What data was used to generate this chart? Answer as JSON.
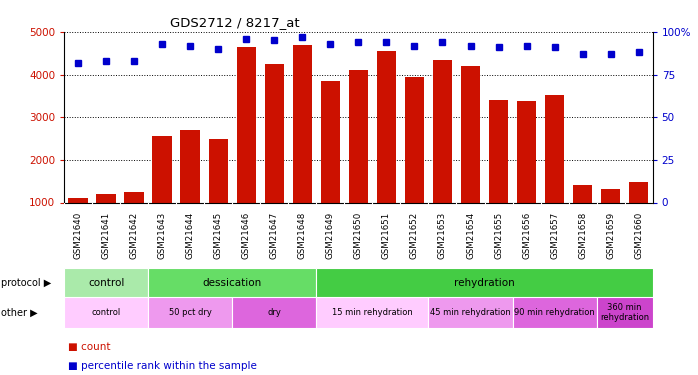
{
  "title": "GDS2712 / 8217_at",
  "samples": [
    "GSM21640",
    "GSM21641",
    "GSM21642",
    "GSM21643",
    "GSM21644",
    "GSM21645",
    "GSM21646",
    "GSM21647",
    "GSM21648",
    "GSM21649",
    "GSM21650",
    "GSM21651",
    "GSM21652",
    "GSM21653",
    "GSM21654",
    "GSM21655",
    "GSM21656",
    "GSM21657",
    "GSM21658",
    "GSM21659",
    "GSM21660"
  ],
  "counts": [
    1100,
    1200,
    1250,
    2550,
    2700,
    2500,
    4650,
    4250,
    4700,
    3850,
    4100,
    4550,
    3950,
    4350,
    4200,
    3400,
    3370,
    3530,
    1420,
    1310,
    1490
  ],
  "percentile_ranks": [
    82,
    83,
    83,
    93,
    92,
    90,
    96,
    95,
    97,
    93,
    94,
    94,
    92,
    94,
    92,
    91,
    92,
    91,
    87,
    87,
    88
  ],
  "bar_color": "#cc1100",
  "dot_color": "#0000cc",
  "ylim_left": [
    1000,
    5000
  ],
  "ylim_right": [
    0,
    100
  ],
  "yticks_left": [
    1000,
    2000,
    3000,
    4000,
    5000
  ],
  "yticks_right": [
    0,
    25,
    50,
    75,
    100
  ],
  "protocol_groups": [
    {
      "label": "control",
      "start": 0,
      "end": 3,
      "color": "#aaeaaa"
    },
    {
      "label": "dessication",
      "start": 3,
      "end": 9,
      "color": "#66dd66"
    },
    {
      "label": "rehydration",
      "start": 9,
      "end": 21,
      "color": "#44cc44"
    }
  ],
  "other_groups": [
    {
      "label": "control",
      "start": 0,
      "end": 3,
      "color": "#ffccff"
    },
    {
      "label": "50 pct dry",
      "start": 3,
      "end": 6,
      "color": "#ee99ee"
    },
    {
      "label": "dry",
      "start": 6,
      "end": 9,
      "color": "#dd66dd"
    },
    {
      "label": "15 min rehydration",
      "start": 9,
      "end": 13,
      "color": "#ffccff"
    },
    {
      "label": "45 min rehydration",
      "start": 13,
      "end": 16,
      "color": "#ee99ee"
    },
    {
      "label": "90 min rehydration",
      "start": 16,
      "end": 19,
      "color": "#dd66dd"
    },
    {
      "label": "360 min\nrehydration",
      "start": 19,
      "end": 21,
      "color": "#cc44cc"
    }
  ],
  "bg_color": "#ffffff",
  "xtick_bg_color": "#cccccc"
}
